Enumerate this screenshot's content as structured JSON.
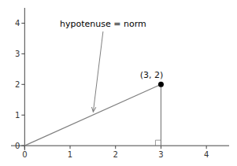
{
  "chart_data": {
    "type": "line",
    "series": [
      {
        "type": "line",
        "color": "gray",
        "x": [
          0,
          3
        ],
        "values": [
          0,
          2
        ]
      },
      {
        "type": "line",
        "color": "gray",
        "x": [
          3,
          3
        ],
        "values": [
          0,
          2
        ]
      },
      {
        "type": "scatter",
        "color": "black",
        "x": [
          3
        ],
        "values": [
          2
        ],
        "data_labels": true,
        "value_labels": [
          "(3, 2)"
        ]
      }
    ],
    "annotations": [
      {
        "text": "hypotenuse = norm"
      }
    ],
    "xlim": [
      -0.3,
      4.5
    ],
    "ylim": [
      -0.15,
      4.5
    ],
    "xticks": [
      0,
      1,
      2,
      3,
      4
    ],
    "yticks": [
      0,
      1,
      2,
      3,
      4
    ],
    "grid": false
  }
}
